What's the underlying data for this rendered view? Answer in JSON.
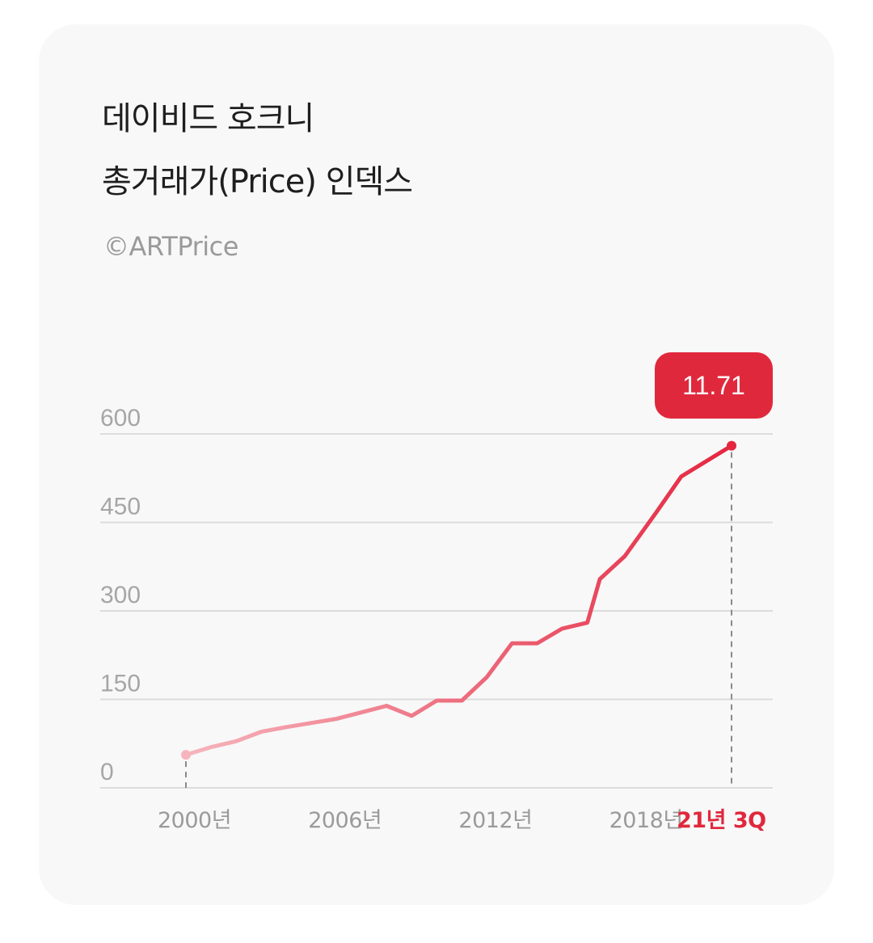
{
  "header": {
    "title_line1": "데이비드 호크니",
    "title_line2": "총거래가(Price) 인덱스",
    "source": "©ARTPrice"
  },
  "colors": {
    "line_start": "#f6b5bd",
    "line_end": "#e42640",
    "accent": "#e0283d",
    "grid": "#dcdcdc"
  },
  "chart_data": {
    "type": "line",
    "title": "데이비드 호크니 총거래가(Price) 인덱스",
    "source": "©ARTPrice",
    "xlabel": "",
    "ylabel": "",
    "ylim": [
      0,
      600
    ],
    "grid": true,
    "y_ticks": [
      0,
      150,
      300,
      450,
      600
    ],
    "x_tick_labels": [
      "2000년",
      "2006년",
      "2012년",
      "2018년",
      "21년 3Q"
    ],
    "x_tick_positions": [
      2000,
      2006,
      2012,
      2018,
      2021.75
    ],
    "xlim": [
      1999,
      2022
    ],
    "series": [
      {
        "values": [
          {
            "x": 2000,
            "y": 56
          },
          {
            "x": 2001,
            "y": 69
          },
          {
            "x": 2002,
            "y": 79
          },
          {
            "x": 2003,
            "y": 95
          },
          {
            "x": 2004,
            "y": 103
          },
          {
            "x": 2005,
            "y": 110
          },
          {
            "x": 2006,
            "y": 117
          },
          {
            "x": 2007,
            "y": 128
          },
          {
            "x": 2008,
            "y": 139
          },
          {
            "x": 2009,
            "y": 122
          },
          {
            "x": 2010,
            "y": 148
          },
          {
            "x": 2011,
            "y": 148
          },
          {
            "x": 2012,
            "y": 188
          },
          {
            "x": 2013,
            "y": 245
          },
          {
            "x": 2014,
            "y": 245
          },
          {
            "x": 2015,
            "y": 270
          },
          {
            "x": 2016,
            "y": 280
          },
          {
            "x": 2016.5,
            "y": 354
          },
          {
            "x": 2017.5,
            "y": 393
          },
          {
            "x": 2018.75,
            "y": 467
          },
          {
            "x": 2019.75,
            "y": 528
          },
          {
            "x": 2021.75,
            "y": 580
          }
        ]
      }
    ],
    "annotation": {
      "text": "11.71",
      "x": 2021.75,
      "y": 580
    }
  }
}
